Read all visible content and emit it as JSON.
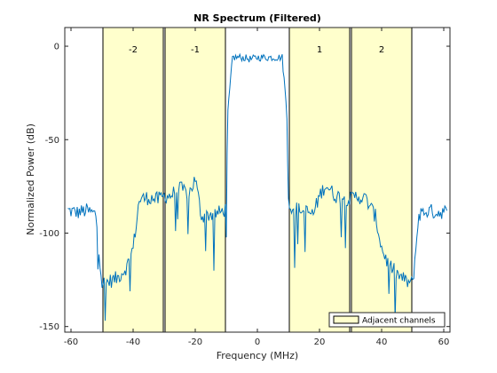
{
  "chart_data": {
    "type": "line",
    "title": "NR Spectrum (Filtered)",
    "xlabel": "Frequency (MHz)",
    "ylabel": "Normalized Power (dB)",
    "xlim": [
      -62,
      62
    ],
    "ylim": [
      -153,
      10
    ],
    "xticks": [
      -60,
      -40,
      -20,
      0,
      20,
      40,
      60
    ],
    "yticks": [
      -150,
      -100,
      -50,
      0
    ],
    "grid": false,
    "colors": {
      "trace": "#0072BD",
      "channel_fill": "#FFFFCC",
      "channel_edge": "#000000"
    },
    "adjacent_channels": [
      {
        "label": "-2",
        "x_range": [
          -50,
          -30
        ]
      },
      {
        "label": "-1",
        "x_range": [
          -30,
          -10
        ]
      },
      {
        "label": "1",
        "x_range": [
          10,
          30
        ]
      },
      {
        "label": "2",
        "x_range": [
          30,
          50
        ]
      }
    ],
    "legend": {
      "location": "bottom-right",
      "entries": [
        "Adjacent channels"
      ]
    },
    "series": [
      {
        "x": [
          -61,
          -58,
          -55,
          -52,
          -50,
          -48,
          -45,
          -42,
          -40,
          -38,
          -35,
          -32,
          -30,
          -28,
          -25,
          -22,
          -20,
          -18,
          -15,
          -12,
          -10,
          -9.5,
          -8,
          -5,
          -2,
          0,
          2,
          5,
          8,
          9.5,
          10,
          12,
          15,
          18,
          20,
          22,
          25,
          28,
          30,
          32,
          35,
          38,
          40,
          42,
          45,
          48,
          50,
          52,
          55,
          58,
          61
        ],
        "y": [
          -88,
          -89,
          -88,
          -90,
          -127,
          -126,
          -124,
          -118,
          -108,
          -82,
          -81,
          -82,
          -80,
          -80,
          -76,
          -79,
          -71,
          -91,
          -90,
          -89,
          -87,
          -35,
          -6,
          -6,
          -7,
          -6,
          -6,
          -6,
          -6,
          -35,
          -84,
          -87,
          -88,
          -90,
          -80,
          -74,
          -80,
          -81,
          -82,
          -80,
          -82,
          -91,
          -108,
          -116,
          -122,
          -126,
          -127,
          -90,
          -88,
          -89,
          -88
        ]
      }
    ]
  }
}
